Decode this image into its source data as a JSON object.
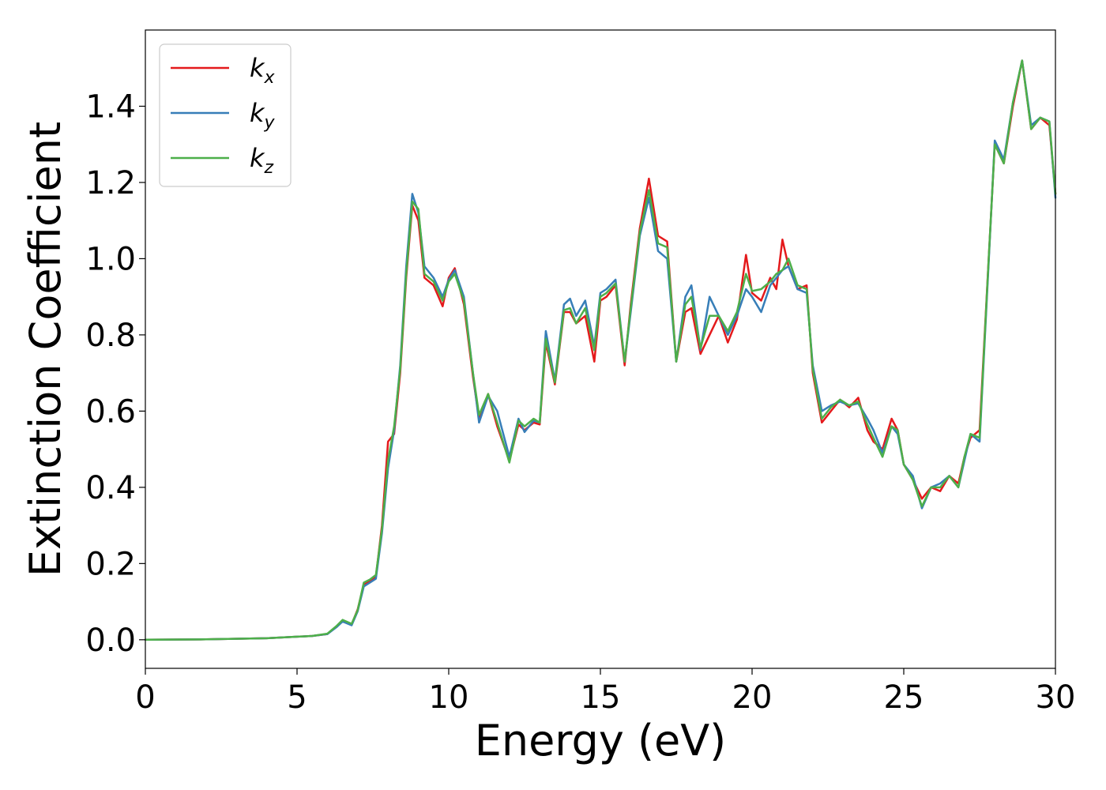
{
  "chart_data": {
    "type": "line",
    "xlabel": "Energy (eV)",
    "ylabel": "Extinction Coefficient",
    "xlim": [
      0,
      30
    ],
    "ylim": [
      -0.075,
      1.6
    ],
    "x_ticks": [
      "0",
      "5",
      "10",
      "15",
      "20",
      "25",
      "30"
    ],
    "y_ticks": [
      "0.0",
      "0.2",
      "0.4",
      "0.6",
      "0.8",
      "1.0",
      "1.2",
      "1.4"
    ],
    "grid": false,
    "legend_position": "top-left",
    "series": [
      {
        "name": "k",
        "subscript": "x",
        "color": "#e41a1c",
        "x": [
          0,
          2,
          4,
          5.5,
          6.0,
          6.3,
          6.5,
          6.8,
          7.0,
          7.2,
          7.4,
          7.6,
          7.8,
          8.0,
          8.2,
          8.4,
          8.6,
          8.8,
          9.0,
          9.2,
          9.5,
          9.8,
          10.0,
          10.2,
          10.5,
          10.8,
          11.0,
          11.3,
          11.6,
          12.0,
          12.3,
          12.5,
          12.8,
          13.0,
          13.2,
          13.5,
          13.8,
          14.0,
          14.2,
          14.5,
          14.8,
          15.0,
          15.2,
          15.5,
          15.8,
          16.0,
          16.3,
          16.6,
          16.9,
          17.2,
          17.5,
          17.8,
          18.0,
          18.3,
          18.6,
          18.9,
          19.2,
          19.5,
          19.8,
          20.0,
          20.3,
          20.6,
          20.8,
          21.0,
          21.2,
          21.5,
          21.8,
          22.0,
          22.3,
          22.6,
          22.9,
          23.2,
          23.5,
          23.8,
          24.0,
          24.3,
          24.6,
          24.8,
          25.0,
          25.3,
          25.6,
          25.9,
          26.2,
          26.5,
          26.8,
          27.0,
          27.2,
          27.5,
          27.8,
          28.0,
          28.3,
          28.6,
          28.9,
          29.2,
          29.5,
          29.8,
          30
        ],
        "values": [
          0.0,
          0.001,
          0.004,
          0.01,
          0.015,
          0.035,
          0.05,
          0.04,
          0.08,
          0.145,
          0.155,
          0.165,
          0.3,
          0.52,
          0.54,
          0.7,
          0.95,
          1.14,
          1.1,
          0.95,
          0.93,
          0.875,
          0.95,
          0.975,
          0.88,
          0.69,
          0.58,
          0.645,
          0.56,
          0.47,
          0.565,
          0.55,
          0.57,
          0.565,
          0.78,
          0.67,
          0.86,
          0.86,
          0.83,
          0.85,
          0.73,
          0.89,
          0.9,
          0.93,
          0.72,
          0.88,
          1.08,
          1.21,
          1.06,
          1.045,
          0.73,
          0.86,
          0.87,
          0.75,
          0.8,
          0.85,
          0.78,
          0.84,
          1.01,
          0.91,
          0.89,
          0.95,
          0.92,
          1.05,
          0.98,
          0.92,
          0.93,
          0.7,
          0.57,
          0.6,
          0.63,
          0.61,
          0.635,
          0.55,
          0.52,
          0.5,
          0.58,
          0.55,
          0.46,
          0.42,
          0.37,
          0.4,
          0.39,
          0.43,
          0.41,
          0.48,
          0.53,
          0.55,
          1.0,
          1.3,
          1.25,
          1.4,
          1.52,
          1.34,
          1.37,
          1.35,
          1.17
        ]
      },
      {
        "name": "k",
        "subscript": "y",
        "color": "#377eb8",
        "x": [
          0,
          2,
          4,
          5.5,
          6.0,
          6.3,
          6.5,
          6.8,
          7.0,
          7.2,
          7.4,
          7.6,
          7.8,
          8.0,
          8.2,
          8.4,
          8.6,
          8.8,
          9.0,
          9.2,
          9.5,
          9.8,
          10.0,
          10.2,
          10.5,
          10.8,
          11.0,
          11.3,
          11.6,
          12.0,
          12.3,
          12.5,
          12.8,
          13.0,
          13.2,
          13.5,
          13.8,
          14.0,
          14.2,
          14.5,
          14.8,
          15.0,
          15.2,
          15.5,
          15.8,
          16.0,
          16.3,
          16.6,
          16.9,
          17.2,
          17.5,
          17.8,
          18.0,
          18.3,
          18.6,
          18.9,
          19.2,
          19.5,
          19.8,
          20.0,
          20.3,
          20.6,
          20.8,
          21.0,
          21.2,
          21.5,
          21.8,
          22.0,
          22.3,
          22.6,
          22.9,
          23.2,
          23.5,
          23.8,
          24.0,
          24.3,
          24.6,
          24.8,
          25.0,
          25.3,
          25.6,
          25.9,
          26.2,
          26.5,
          26.8,
          27.0,
          27.2,
          27.5,
          27.8,
          28.0,
          28.3,
          28.6,
          28.9,
          29.2,
          29.5,
          29.8,
          30
        ],
        "values": [
          0.0,
          0.001,
          0.004,
          0.01,
          0.015,
          0.033,
          0.048,
          0.038,
          0.075,
          0.14,
          0.15,
          0.16,
          0.28,
          0.45,
          0.55,
          0.72,
          0.98,
          1.17,
          1.12,
          0.98,
          0.95,
          0.9,
          0.945,
          0.97,
          0.9,
          0.7,
          0.57,
          0.64,
          0.6,
          0.48,
          0.58,
          0.545,
          0.575,
          0.57,
          0.81,
          0.68,
          0.88,
          0.895,
          0.85,
          0.89,
          0.77,
          0.91,
          0.92,
          0.945,
          0.73,
          0.86,
          1.06,
          1.16,
          1.02,
          1.0,
          0.73,
          0.9,
          0.93,
          0.76,
          0.9,
          0.85,
          0.8,
          0.85,
          0.92,
          0.9,
          0.86,
          0.93,
          0.95,
          0.97,
          0.98,
          0.92,
          0.91,
          0.72,
          0.6,
          0.615,
          0.625,
          0.615,
          0.62,
          0.58,
          0.55,
          0.49,
          0.56,
          0.54,
          0.46,
          0.43,
          0.345,
          0.4,
          0.41,
          0.43,
          0.4,
          0.47,
          0.54,
          0.52,
          0.99,
          1.31,
          1.26,
          1.41,
          1.52,
          1.35,
          1.37,
          1.36,
          1.16
        ]
      },
      {
        "name": "k",
        "subscript": "z",
        "color": "#4daf4a",
        "x": [
          0,
          2,
          4,
          5.5,
          6.0,
          6.3,
          6.5,
          6.8,
          7.0,
          7.2,
          7.4,
          7.6,
          7.8,
          8.0,
          8.2,
          8.4,
          8.6,
          8.8,
          9.0,
          9.2,
          9.5,
          9.8,
          10.0,
          10.2,
          10.5,
          10.8,
          11.0,
          11.3,
          11.6,
          12.0,
          12.3,
          12.5,
          12.8,
          13.0,
          13.2,
          13.5,
          13.8,
          14.0,
          14.2,
          14.5,
          14.8,
          15.0,
          15.2,
          15.5,
          15.8,
          16.0,
          16.3,
          16.6,
          16.9,
          17.2,
          17.5,
          17.8,
          18.0,
          18.3,
          18.6,
          18.9,
          19.2,
          19.5,
          19.8,
          20.0,
          20.3,
          20.6,
          20.8,
          21.0,
          21.2,
          21.5,
          21.8,
          22.0,
          22.3,
          22.6,
          22.9,
          23.2,
          23.5,
          23.8,
          24.0,
          24.3,
          24.6,
          24.8,
          25.0,
          25.3,
          25.6,
          25.9,
          26.2,
          26.5,
          26.8,
          27.0,
          27.2,
          27.5,
          27.8,
          28.0,
          28.3,
          28.6,
          28.9,
          29.2,
          29.5,
          29.8,
          30
        ],
        "values": [
          0.0,
          0.001,
          0.004,
          0.01,
          0.016,
          0.036,
          0.052,
          0.042,
          0.078,
          0.15,
          0.158,
          0.17,
          0.29,
          0.47,
          0.56,
          0.71,
          0.96,
          1.15,
          1.13,
          0.96,
          0.94,
          0.89,
          0.94,
          0.96,
          0.89,
          0.7,
          0.59,
          0.645,
          0.57,
          0.465,
          0.575,
          0.56,
          0.58,
          0.57,
          0.79,
          0.675,
          0.865,
          0.87,
          0.83,
          0.87,
          0.76,
          0.9,
          0.91,
          0.935,
          0.73,
          0.87,
          1.07,
          1.18,
          1.04,
          1.03,
          0.73,
          0.88,
          0.9,
          0.765,
          0.85,
          0.85,
          0.81,
          0.86,
          0.96,
          0.915,
          0.92,
          0.94,
          0.96,
          0.97,
          1.0,
          0.93,
          0.92,
          0.71,
          0.58,
          0.61,
          0.63,
          0.615,
          0.625,
          0.565,
          0.53,
          0.48,
          0.56,
          0.55,
          0.46,
          0.42,
          0.35,
          0.4,
          0.4,
          0.43,
          0.4,
          0.48,
          0.54,
          0.53,
          1.0,
          1.3,
          1.25,
          1.41,
          1.52,
          1.34,
          1.37,
          1.36,
          1.17
        ]
      }
    ]
  }
}
